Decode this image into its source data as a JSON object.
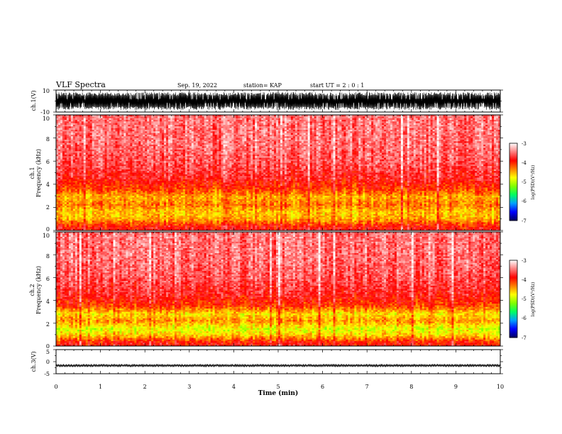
{
  "header": {
    "title": "VLF Spectra",
    "date": "Sep. 19, 2022",
    "station": "station= KAP",
    "start_ut": "start  UT  =   2 : 0  : 1"
  },
  "colors": {
    "cmap": [
      "#000060",
      "#0000ff",
      "#00a0ff",
      "#00ff60",
      "#80ff00",
      "#ffff00",
      "#ff8000",
      "#ff0000",
      "#ff8080",
      "#ffffff"
    ],
    "trace": "#000000",
    "background": "#ffffff"
  },
  "chart_data": [
    {
      "type": "line",
      "panel": "ch1-waveform",
      "ylabel": "ch.1(V)",
      "ylim": [
        -10,
        10
      ],
      "yticks": [
        "10",
        "-10"
      ],
      "xlim": [
        0,
        10
      ],
      "note_values": "dense oscillating waveform saturating near +/-10 V with dropouts",
      "amplitude_typical": 7
    },
    {
      "type": "heatmap",
      "panel": "ch1-spectrogram",
      "ylabel": "ch.1\nFrequency (kHz)",
      "ylabel_line1": "ch.1",
      "ylabel_line2": "Frequency (kHz)",
      "ylim": [
        0,
        10
      ],
      "yticks": [
        "0",
        "2",
        "4",
        "6",
        "8",
        "10"
      ],
      "xlim": [
        0,
        10
      ],
      "band_profile_log_psd": [
        {
          "f": 0.3,
          "v": -3.9
        },
        {
          "f": 1.0,
          "v": -4.5
        },
        {
          "f": 1.6,
          "v": -4.6
        },
        {
          "f": 2.2,
          "v": -4.3
        },
        {
          "f": 2.9,
          "v": -4.5
        },
        {
          "f": 3.6,
          "v": -4.1
        },
        {
          "f": 4.5,
          "v": -3.8
        },
        {
          "f": 6.0,
          "v": -3.6
        },
        {
          "f": 8.0,
          "v": -3.5
        },
        {
          "f": 10.0,
          "v": -3.5
        }
      ],
      "colorbar": {
        "label": "log(PSD)(V²/Hz)",
        "range": [
          -7,
          -3
        ],
        "ticks": [
          "-3",
          "-4",
          "-5",
          "-6",
          "-7"
        ]
      }
    },
    {
      "type": "heatmap",
      "panel": "ch2-spectrogram",
      "ylabel_line1": "ch.2",
      "ylabel_line2": "Frequency (kHz)",
      "ylim": [
        0,
        10
      ],
      "yticks": [
        "0",
        "2",
        "4",
        "6",
        "8",
        "10"
      ],
      "xlim": [
        0,
        10
      ],
      "band_profile_log_psd": [
        {
          "f": 0.3,
          "v": -3.9
        },
        {
          "f": 0.9,
          "v": -4.6
        },
        {
          "f": 1.5,
          "v": -4.9
        },
        {
          "f": 2.2,
          "v": -4.4
        },
        {
          "f": 2.8,
          "v": -4.7
        },
        {
          "f": 3.5,
          "v": -4.1
        },
        {
          "f": 4.5,
          "v": -3.8
        },
        {
          "f": 6.0,
          "v": -3.6
        },
        {
          "f": 8.0,
          "v": -3.5
        },
        {
          "f": 10.0,
          "v": -3.5
        }
      ],
      "colorbar": {
        "label": "log(PSD)(V²/Hz)",
        "range": [
          -7,
          -3
        ],
        "ticks": [
          "-3",
          "-4",
          "-5",
          "-6",
          "-7"
        ]
      }
    },
    {
      "type": "line",
      "panel": "ch3-waveform",
      "ylabel": "ch.3(V)",
      "ylim": [
        -5,
        5
      ],
      "yticks": [
        "5",
        "0",
        "-5"
      ],
      "xlim": [
        0,
        10
      ],
      "level": -1.6,
      "amplitude_typical": 0.6
    }
  ],
  "xaxis": {
    "label": "Time (min)",
    "ticks": [
      "0",
      "1",
      "2",
      "3",
      "4",
      "5",
      "6",
      "7",
      "8",
      "9",
      "10"
    ]
  }
}
